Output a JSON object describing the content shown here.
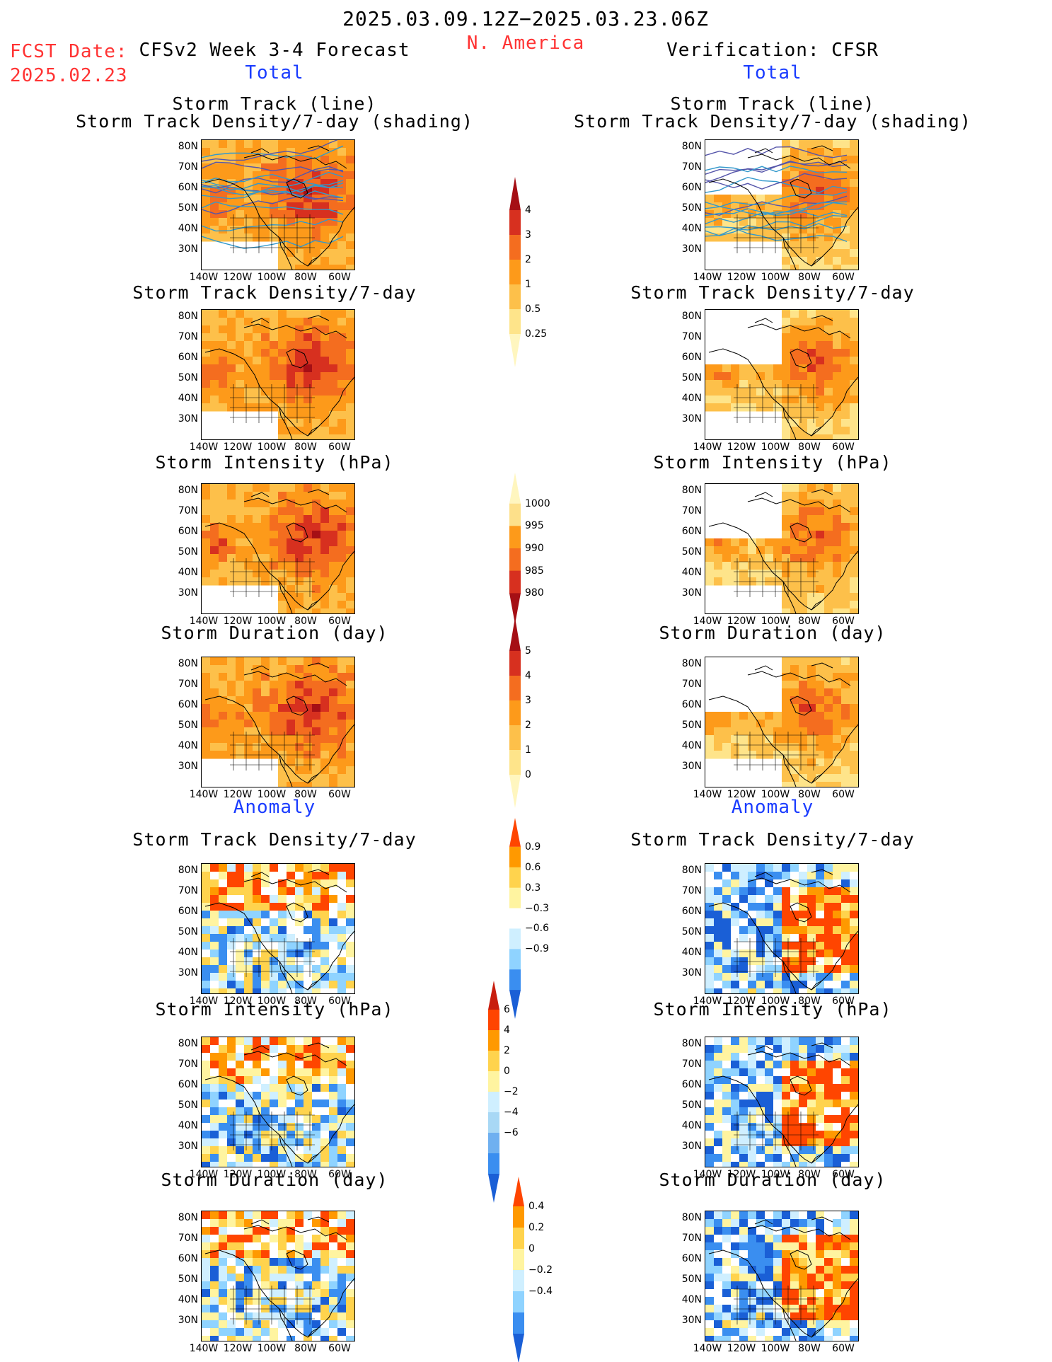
{
  "header": {
    "period": "2025.03.09.12Z−2025.03.23.06Z",
    "region": "N. America",
    "fcst_label": "FCST Date:",
    "fcst_date": "2025.02.23",
    "model_title": "CFSv2 Week 3-4 Forecast",
    "verif_title": "Verification: CFSR"
  },
  "sections": {
    "total": "Total",
    "anomaly": "Anomaly"
  },
  "panel_titles": {
    "track_line": "Storm Track (line)",
    "track_shading": "Storm Track Density/7-day (shading)",
    "density": "Storm Track Density/7-day",
    "intensity": "Storm Intensity (hPa)",
    "duration": "Storm Duration (day)"
  },
  "axes": {
    "lat_labels": [
      "80N",
      "70N",
      "60N",
      "50N",
      "40N",
      "30N"
    ],
    "lon_labels": [
      "140W",
      "120W",
      "100W",
      "80W",
      "60W"
    ]
  },
  "colorbars": [
    {
      "id": "density_total",
      "labels": [
        "4",
        "3",
        "2",
        "1",
        "0.5",
        "0.25"
      ],
      "colors": [
        "#a50f15",
        "#d7301f",
        "#f46d1f",
        "#fd9a1a",
        "#fdc04a",
        "#fee48a",
        "#fff6bf"
      ]
    },
    {
      "id": "intensity_total",
      "labels": [
        "1000",
        "995",
        "990",
        "985",
        "980"
      ],
      "colors": [
        "#fff6bf",
        "#fde08a",
        "#fd9a1a",
        "#f46d1f",
        "#d7301f",
        "#a50f15"
      ]
    },
    {
      "id": "duration_total",
      "labels": [
        "5",
        "4",
        "3",
        "2",
        "1",
        "0"
      ],
      "colors": [
        "#a50f15",
        "#d7301f",
        "#f46d1f",
        "#fd9a1a",
        "#fdc04a",
        "#fee48a",
        "#fff6bf"
      ]
    },
    {
      "id": "density_anom",
      "labels": [
        "0.9",
        "0.6",
        "0.3",
        "−0.3",
        "−0.6",
        "−0.9"
      ],
      "colors": [
        "#ff4500",
        "#ff9900",
        "#ffd34d",
        "#fff4a0",
        "#ffffff",
        "#cfefff",
        "#8fd3ff",
        "#3a8ef0",
        "#1a5fd6"
      ]
    },
    {
      "id": "intensity_anom",
      "labels": [
        "6",
        "4",
        "2",
        "0",
        "−2",
        "−4",
        "−6"
      ],
      "colors": [
        "#c81e0f",
        "#ff4500",
        "#ff9900",
        "#ffd34d",
        "#fff4a0",
        "#cfefff",
        "#a8d8f5",
        "#6fb0f0",
        "#3a8ef0",
        "#1a5fd6"
      ]
    },
    {
      "id": "duration_anom",
      "labels": [
        "0.4",
        "0.2",
        "0",
        "−0.2",
        "−0.4"
      ],
      "colors": [
        "#ff4500",
        "#ff9900",
        "#ffd34d",
        "#fff4a0",
        "#cfefff",
        "#8fd3ff",
        "#3a8ef0",
        "#1a5fd6"
      ]
    }
  ]
}
